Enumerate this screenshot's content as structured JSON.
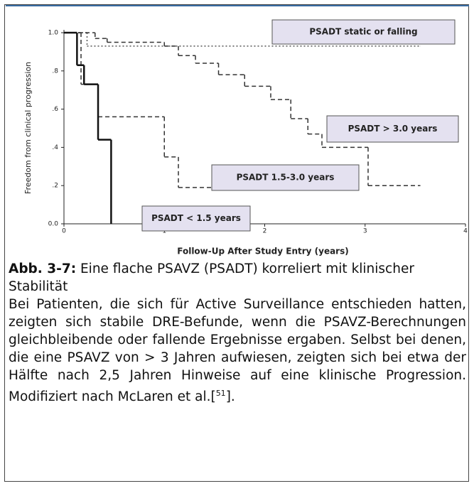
{
  "chart_data": {
    "type": "step",
    "xlabel": "Follow-Up After Study Entry (years)",
    "ylabel": "Freedom from clinical progression",
    "xlim": [
      0,
      4
    ],
    "xticks": [
      0,
      1,
      2,
      3,
      4
    ],
    "ylim": [
      0,
      1
    ],
    "yticks": [
      {
        "value": 0,
        "label": "0.0"
      },
      {
        "value": 0.2,
        "label": ".2"
      },
      {
        "value": 0.4,
        "label": ".4"
      },
      {
        "value": 0.6,
        "label": ".6"
      },
      {
        "value": 0.8,
        "label": ".8"
      },
      {
        "value": 1,
        "label": "1.0"
      }
    ],
    "series": [
      {
        "name": "PSADT static or falling",
        "color": "#555555",
        "dash": "dotted",
        "x": [
          0,
          0.23,
          3.55
        ],
        "values": [
          1,
          0.93,
          0.93
        ]
      },
      {
        "name": "PSADT > 3.0 years",
        "color": "#333333",
        "dash": "dashed",
        "x": [
          0,
          0.31,
          0.43,
          1.0,
          1.14,
          1.31,
          1.54,
          1.8,
          2.06,
          2.26,
          2.43,
          2.57,
          3.03,
          3.55
        ],
        "values": [
          1,
          0.97,
          0.95,
          0.93,
          0.88,
          0.84,
          0.78,
          0.72,
          0.65,
          0.55,
          0.47,
          0.4,
          0.2,
          0.2
        ]
      },
      {
        "name": "PSADT 1.5-3.0 years",
        "color": "#333333",
        "dash": "dashed",
        "x": [
          0,
          0.17,
          0.34,
          1.0,
          1.14,
          1.47
        ],
        "values": [
          1,
          0.73,
          0.56,
          0.35,
          0.19,
          0.19
        ]
      },
      {
        "name": "PSADT < 1.5 years",
        "color": "#111111",
        "dash": "solid",
        "x": [
          0,
          0.13,
          0.2,
          0.34,
          0.47
        ],
        "values": [
          1,
          0.83,
          0.73,
          0.44,
          0
        ]
      }
    ]
  },
  "caption": {
    "label": "Abb. 3-7:",
    "title": "Eine flache PSAVZ (PSADT) korreliert mit klinischer Stabilität",
    "body": "Bei Patienten, die sich für Active Surveillance ent­schieden hatten, zeigten sich stabile DRE-Befunde, wenn die PSAVZ-Berechnungen gleichbleibende oder fallende Ergebnisse ergaben. Selbst bei denen, die eine PSAVZ von > 3 Jahren aufwiesen, zeigten sich bei etwa der Hälfte nach 2,5 Jahren Hinweise auf eine klinische Progression. Modifiziert nach McLaren et al.[",
    "reference": "51",
    "body_end": "]."
  }
}
